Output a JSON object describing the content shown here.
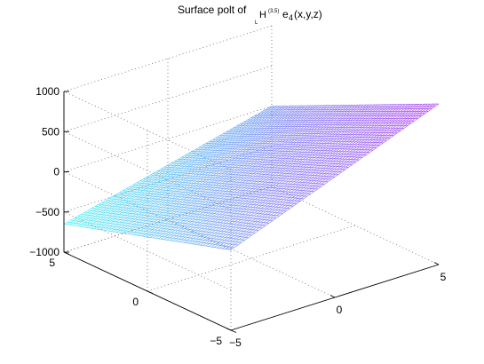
{
  "chart_data": {
    "type": "surface",
    "title": {
      "prefix": "Surface polt of ",
      "sub_l": "L",
      "main_h": "H",
      "sup": "(3,5)",
      "e": "e",
      "sub_4": "4",
      "args": "(x,y,z)"
    },
    "x_range": [
      -5,
      5
    ],
    "y_range": [
      -5,
      5
    ],
    "z_range": [
      -1000,
      1000
    ],
    "z_ticks": [
      "1000",
      "500",
      "0",
      "−500",
      "−1000"
    ],
    "x_ticks": [
      "−5",
      "0",
      "5"
    ],
    "y_ticks": [
      "5",
      "0",
      "−5"
    ],
    "corner_values": {
      "x_min_y_min": 0,
      "x_max_y_max": 0,
      "x_min_y_max": -650,
      "x_max_y_min": 1000
    },
    "grid": true,
    "colormap": [
      "#32f2f2",
      "#6e6ef2",
      "#a020f0"
    ],
    "mesh": "wireframe"
  }
}
